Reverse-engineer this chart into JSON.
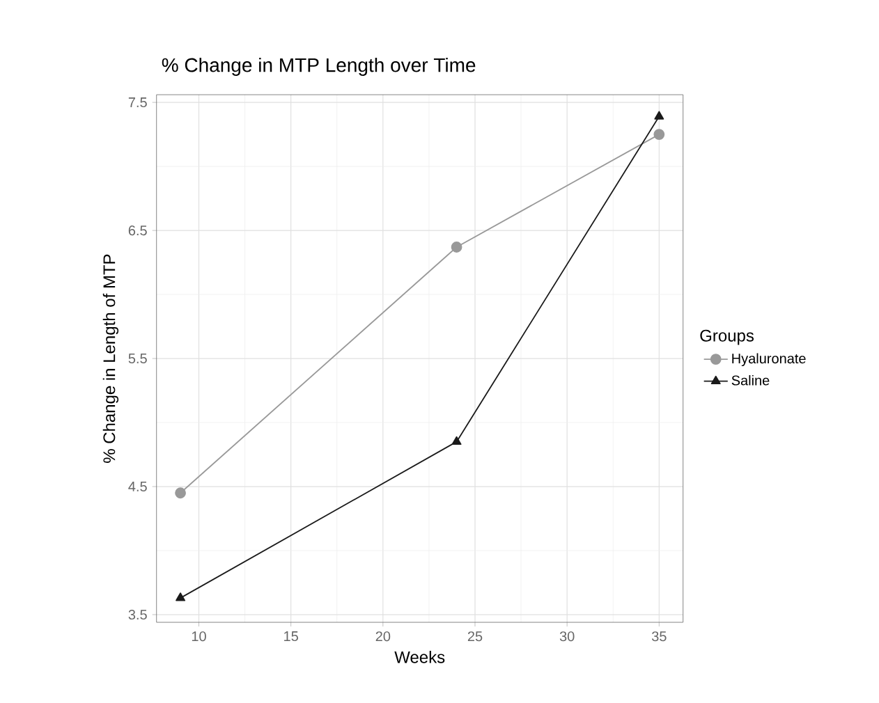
{
  "chart_data": {
    "type": "line",
    "title": "% Change in MTP Length over Time",
    "xlabel": "Weeks",
    "ylabel": "% Change in Length of MTP",
    "legend_title": "Groups",
    "x": [
      9,
      24,
      35
    ],
    "series": [
      {
        "name": "Hyaluronate",
        "color": "#999999",
        "marker": "circle",
        "values": [
          4.45,
          6.37,
          7.25
        ]
      },
      {
        "name": "Saline",
        "color": "#1a1a1a",
        "marker": "triangle",
        "values": [
          3.63,
          4.85,
          7.39
        ]
      }
    ],
    "xlim": [
      7.7,
      36.3
    ],
    "xticks": [
      10,
      15,
      20,
      25,
      30,
      35
    ],
    "ylim": [
      3.44,
      7.56
    ],
    "yticks": [
      3.5,
      4.5,
      5.5,
      6.5,
      7.5
    ],
    "grid": true,
    "legend": "right",
    "line_style": "solid"
  }
}
